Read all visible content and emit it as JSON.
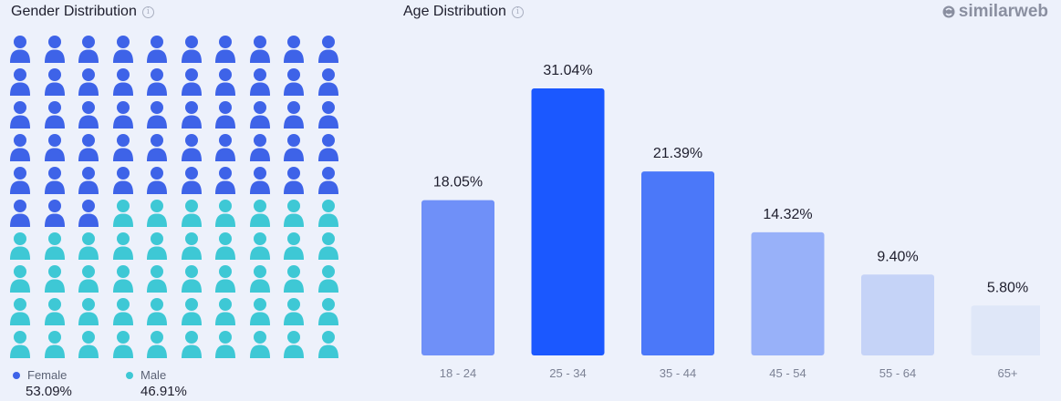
{
  "gender": {
    "title": "Gender Distribution",
    "info_glyph": "i",
    "female_label": "Female",
    "female_value": "53.09%",
    "male_label": "Male",
    "male_value": "46.91%",
    "icon_count": 100,
    "female_icon_count": 53,
    "female_color": "#3e63e8",
    "male_color": "#3ec8d5"
  },
  "age": {
    "title": "Age Distribution",
    "info_glyph": "i"
  },
  "brand": {
    "name": "similarweb",
    "icon": "similarweb-logo-icon"
  },
  "chart_data": {
    "type": "bar",
    "categories": [
      "18 - 24",
      "25 - 34",
      "35 - 44",
      "45 - 54",
      "55 - 64",
      "65+"
    ],
    "values": [
      18.05,
      31.04,
      21.39,
      14.32,
      9.4,
      5.8
    ],
    "data_labels": [
      "18.05%",
      "31.04%",
      "21.39%",
      "14.32%",
      "9.40%",
      "5.80%"
    ],
    "colors": [
      "#6f90f8",
      "#1b58ff",
      "#4b78f9",
      "#98b1f9",
      "#c5d3f7",
      "#dfe7f8"
    ],
    "ylim": [
      0,
      31.04
    ],
    "grid": false
  }
}
